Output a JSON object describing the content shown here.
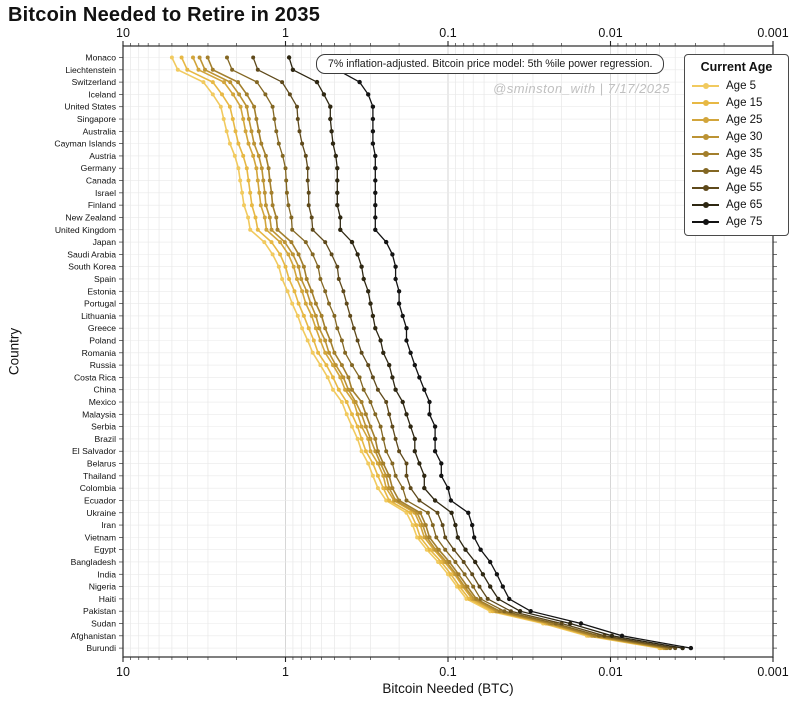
{
  "title": "Bitcoin Needed to Retire in 2035",
  "annotation": {
    "text": "7% inflation-adjusted. Bitcoin price model: 5th %ile power regression."
  },
  "watermark": {
    "text": "@sminston_with  |  7/17/2025"
  },
  "legend": {
    "title": "Current Age",
    "position": "upper right",
    "entries": [
      {
        "label": "Age 5",
        "color": "#F1CA5F"
      },
      {
        "label": "Age 15",
        "color": "#E7B844"
      },
      {
        "label": "Age 25",
        "color": "#D2A53B"
      },
      {
        "label": "Age 30",
        "color": "#BC9334"
      },
      {
        "label": "Age 35",
        "color": "#A37F2C"
      },
      {
        "label": "Age 45",
        "color": "#836723"
      },
      {
        "label": "Age 55",
        "color": "#5E491B"
      },
      {
        "label": "Age 65",
        "color": "#2E2712"
      },
      {
        "label": "Age 75",
        "color": "#131313"
      }
    ]
  },
  "chart_data": {
    "type": "line",
    "orientation": "horizontal-categories",
    "title": "Bitcoin Needed to Retire in 2035",
    "xlabel": "Bitcoin Needed (BTC)",
    "ylabel": "Country",
    "x_scale": "log",
    "x_reversed": true,
    "x_range": [
      10,
      0.001
    ],
    "x_tick_labels": [
      "10",
      "1",
      "0.1",
      "0.01",
      "0.001"
    ],
    "grid": true,
    "ages": [
      5,
      15,
      25,
      30,
      35,
      45,
      55,
      65,
      75
    ],
    "countries": [
      "Monaco",
      "Liechtenstein",
      "Switzerland",
      "Iceland",
      "United States",
      "Singapore",
      "Australia",
      "Cayman Islands",
      "Austria",
      "Germany",
      "Canada",
      "Israel",
      "Finland",
      "New Zealand",
      "United Kingdom",
      "Japan",
      "Saudi Arabia",
      "South Korea",
      "Spain",
      "Estonia",
      "Portugal",
      "Lithuania",
      "Greece",
      "Poland",
      "Romania",
      "Russia",
      "Costa Rica",
      "China",
      "Mexico",
      "Malaysia",
      "Serbia",
      "Brazil",
      "El Salvador",
      "Belarus",
      "Thailand",
      "Colombia",
      "Ecuador",
      "Ukraine",
      "Iran",
      "Vietnam",
      "Egypt",
      "Bangladesh",
      "India",
      "Nigeria",
      "Haiti",
      "Pakistan",
      "Sudan",
      "Afghanistan",
      "Burundi"
    ],
    "btc_needed_by_age": [
      [
        5.0,
        4.36,
        3.71,
        3.38,
        3.01,
        2.29,
        1.58,
        0.95,
        0.5
      ],
      [
        4.6,
        4.02,
        3.43,
        3.13,
        2.8,
        2.13,
        1.48,
        0.9,
        0.48
      ],
      [
        3.2,
        2.8,
        2.39,
        2.19,
        1.96,
        1.5,
        1.05,
        0.64,
        0.35
      ],
      [
        2.8,
        2.46,
        2.1,
        1.93,
        1.73,
        1.33,
        0.94,
        0.58,
        0.31
      ],
      [
        2.5,
        2.2,
        1.89,
        1.73,
        1.56,
        1.2,
        0.85,
        0.53,
        0.29
      ],
      [
        2.4,
        2.11,
        1.82,
        1.68,
        1.51,
        1.17,
        0.84,
        0.53,
        0.29
      ],
      [
        2.3,
        2.03,
        1.76,
        1.62,
        1.46,
        1.14,
        0.82,
        0.52,
        0.29
      ],
      [
        2.2,
        1.95,
        1.69,
        1.56,
        1.41,
        1.1,
        0.79,
        0.51,
        0.29
      ],
      [
        2.05,
        1.82,
        1.58,
        1.46,
        1.32,
        1.04,
        0.75,
        0.49,
        0.28
      ],
      [
        1.95,
        1.73,
        1.51,
        1.4,
        1.27,
        1.0,
        0.73,
        0.48,
        0.28
      ],
      [
        1.9,
        1.69,
        1.48,
        1.37,
        1.25,
        0.99,
        0.73,
        0.48,
        0.28
      ],
      [
        1.85,
        1.65,
        1.45,
        1.34,
        1.22,
        0.98,
        0.72,
        0.48,
        0.28
      ],
      [
        1.8,
        1.61,
        1.42,
        1.32,
        1.2,
        0.96,
        0.72,
        0.48,
        0.28
      ],
      [
        1.7,
        1.53,
        1.34,
        1.25,
        1.14,
        0.92,
        0.69,
        0.46,
        0.28
      ],
      [
        1.65,
        1.48,
        1.31,
        1.22,
        1.12,
        0.91,
        0.68,
        0.46,
        0.28
      ],
      [
        1.35,
        1.22,
        1.08,
        1.01,
        0.92,
        0.75,
        0.57,
        0.39,
        0.24
      ],
      [
        1.2,
        1.08,
        0.96,
        0.9,
        0.83,
        0.68,
        0.52,
        0.36,
        0.22
      ],
      [
        1.1,
        1.0,
        0.89,
        0.83,
        0.77,
        0.63,
        0.48,
        0.34,
        0.21
      ],
      [
        1.05,
        0.95,
        0.85,
        0.8,
        0.74,
        0.61,
        0.47,
        0.33,
        0.21
      ],
      [
        0.97,
        0.88,
        0.79,
        0.74,
        0.69,
        0.57,
        0.44,
        0.31,
        0.2
      ],
      [
        0.91,
        0.83,
        0.75,
        0.7,
        0.65,
        0.54,
        0.42,
        0.3,
        0.2
      ],
      [
        0.84,
        0.77,
        0.69,
        0.65,
        0.6,
        0.5,
        0.4,
        0.29,
        0.19
      ],
      [
        0.79,
        0.72,
        0.65,
        0.62,
        0.57,
        0.48,
        0.38,
        0.28,
        0.18
      ],
      [
        0.73,
        0.67,
        0.61,
        0.57,
        0.53,
        0.45,
        0.36,
        0.26,
        0.18
      ],
      [
        0.68,
        0.63,
        0.57,
        0.54,
        0.5,
        0.43,
        0.34,
        0.25,
        0.17
      ],
      [
        0.61,
        0.56,
        0.51,
        0.49,
        0.45,
        0.39,
        0.31,
        0.23,
        0.16
      ],
      [
        0.55,
        0.51,
        0.46,
        0.44,
        0.41,
        0.35,
        0.29,
        0.22,
        0.15
      ],
      [
        0.51,
        0.47,
        0.43,
        0.41,
        0.39,
        0.33,
        0.27,
        0.21,
        0.14
      ],
      [
        0.45,
        0.42,
        0.38,
        0.37,
        0.34,
        0.3,
        0.24,
        0.19,
        0.13
      ],
      [
        0.42,
        0.39,
        0.36,
        0.34,
        0.32,
        0.28,
        0.23,
        0.18,
        0.13
      ],
      [
        0.39,
        0.36,
        0.34,
        0.32,
        0.3,
        0.26,
        0.22,
        0.17,
        0.12
      ],
      [
        0.36,
        0.34,
        0.31,
        0.3,
        0.28,
        0.25,
        0.21,
        0.16,
        0.12
      ],
      [
        0.34,
        0.32,
        0.3,
        0.28,
        0.27,
        0.24,
        0.2,
        0.16,
        0.12
      ],
      [
        0.31,
        0.29,
        0.27,
        0.26,
        0.25,
        0.22,
        0.18,
        0.15,
        0.11
      ],
      [
        0.29,
        0.27,
        0.25,
        0.24,
        0.23,
        0.21,
        0.18,
        0.14,
        0.11
      ],
      [
        0.27,
        0.25,
        0.24,
        0.23,
        0.22,
        0.19,
        0.17,
        0.14,
        0.1
      ],
      [
        0.24,
        0.23,
        0.215,
        0.21,
        0.2,
        0.18,
        0.15,
        0.12,
        0.096
      ],
      [
        0.18,
        0.17,
        0.16,
        0.155,
        0.148,
        0.133,
        0.116,
        0.095,
        0.075
      ],
      [
        0.165,
        0.157,
        0.148,
        0.143,
        0.137,
        0.124,
        0.108,
        0.09,
        0.071
      ],
      [
        0.155,
        0.148,
        0.14,
        0.135,
        0.13,
        0.118,
        0.104,
        0.087,
        0.069
      ],
      [
        0.135,
        0.129,
        0.122,
        0.119,
        0.114,
        0.104,
        0.092,
        0.078,
        0.063
      ],
      [
        0.115,
        0.11,
        0.105,
        0.102,
        0.098,
        0.09,
        0.08,
        0.068,
        0.055
      ],
      [
        0.1,
        0.096,
        0.091,
        0.089,
        0.086,
        0.079,
        0.071,
        0.061,
        0.05
      ],
      [
        0.088,
        0.085,
        0.081,
        0.079,
        0.076,
        0.07,
        0.064,
        0.055,
        0.046
      ],
      [
        0.077,
        0.074,
        0.071,
        0.069,
        0.067,
        0.063,
        0.057,
        0.049,
        0.042
      ],
      [
        0.055,
        0.053,
        0.051,
        0.05,
        0.048,
        0.045,
        0.041,
        0.036,
        0.031
      ],
      [
        0.026,
        0.025,
        0.0243,
        0.0237,
        0.023,
        0.0217,
        0.02,
        0.0177,
        0.0152
      ],
      [
        0.014,
        0.0136,
        0.0131,
        0.0129,
        0.0125,
        0.0118,
        0.0109,
        0.0098,
        0.0085
      ],
      [
        0.005,
        0.0049,
        0.0047,
        0.0046,
        0.0045,
        0.0043,
        0.004,
        0.0036,
        0.0032
      ]
    ]
  }
}
